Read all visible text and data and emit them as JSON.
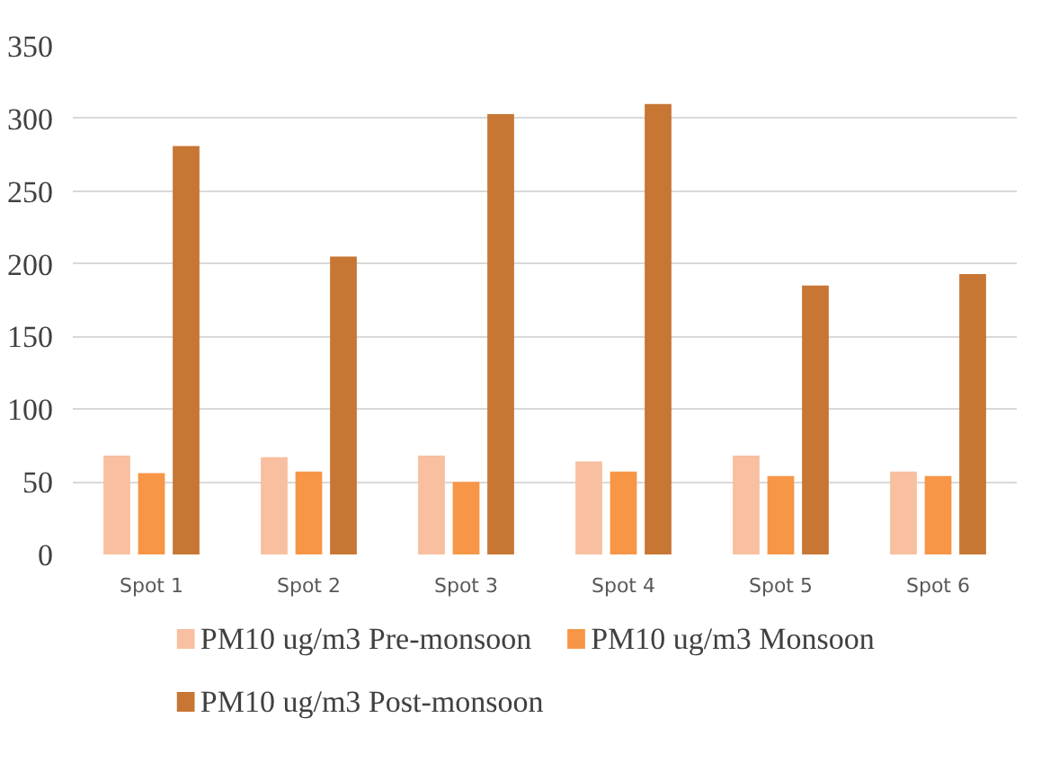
{
  "chart_data": {
    "type": "bar",
    "categories": [
      "Spot 1",
      "Spot 2",
      "Spot 3",
      "Spot 4",
      "Spot 5",
      "Spot 6"
    ],
    "series": [
      {
        "name": "PM10 ug/m3 Pre-monsoon",
        "color": "#f8bfa0",
        "values": [
          68,
          67,
          68,
          64,
          68,
          57
        ]
      },
      {
        "name": "PM10 ug/m3 Monsoon",
        "color": "#f79646",
        "values": [
          56,
          57,
          50,
          57,
          54,
          54
        ]
      },
      {
        "name": "PM10 ug/m3 Post-monsoon",
        "color": "#c77634",
        "values": [
          281,
          205,
          303,
          310,
          185,
          193
        ]
      }
    ],
    "ylim": [
      0,
      350
    ],
    "yticks": [
      0,
      50,
      100,
      150,
      200,
      250,
      300,
      350
    ],
    "grid": "y",
    "legend": "bottom"
  }
}
